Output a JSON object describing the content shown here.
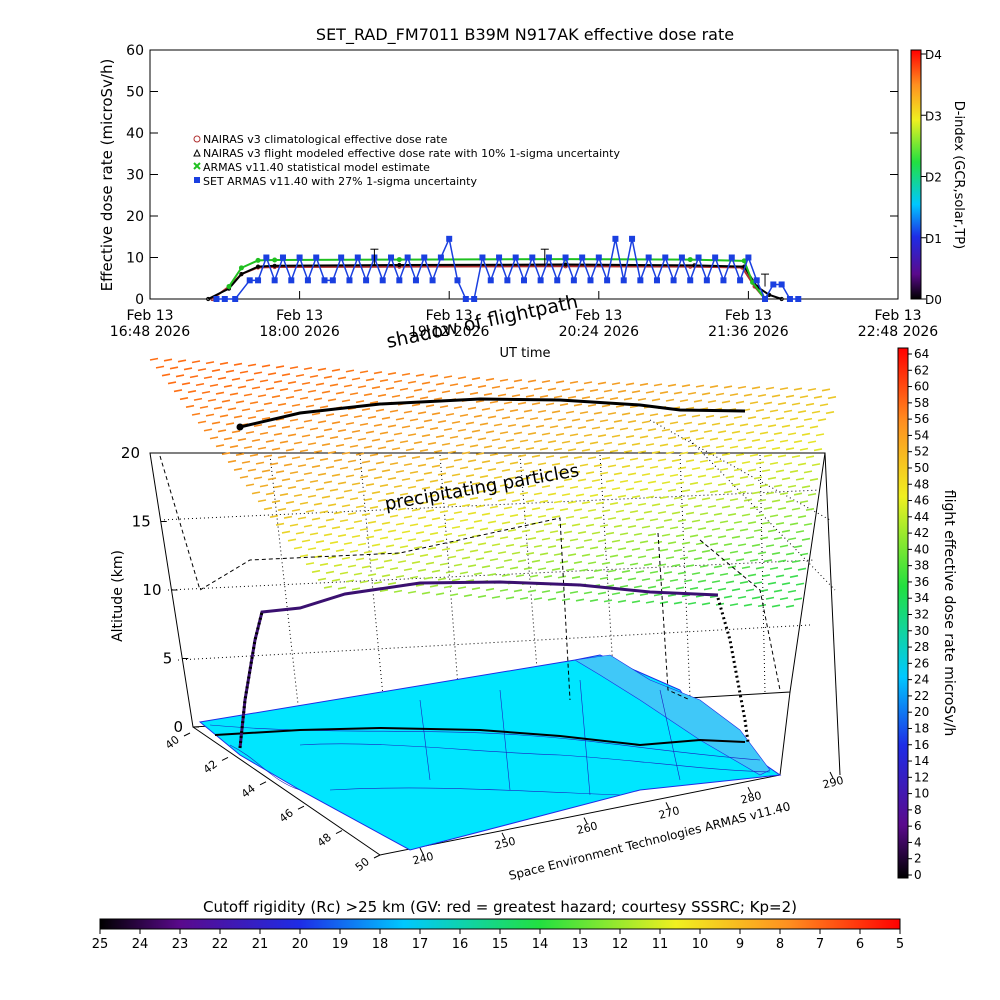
{
  "chart_data": [
    {
      "type": "line",
      "title": "SET_RAD_FM7011   B39M N917AK effective dose rate",
      "ylabel": "Effective dose rate (microSv/h)",
      "xlabel": "UT time",
      "ylim": [
        0,
        60
      ],
      "yticks": [
        0,
        10,
        20,
        30,
        40,
        50,
        60
      ],
      "xlim_minutes": [
        0,
        360
      ],
      "xticks": [
        {
          "m": 0,
          "l1": "Feb 13",
          "l2": "16:48 2026"
        },
        {
          "m": 72,
          "l1": "Feb 13",
          "l2": "18:00 2026"
        },
        {
          "m": 144,
          "l1": "Feb 13",
          "l2": "19:12 2026"
        },
        {
          "m": 216,
          "l1": "Feb 13",
          "l2": "20:24 2026"
        },
        {
          "m": 288,
          "l1": "Feb 13",
          "l2": "21:36 2026"
        },
        {
          "m": 360,
          "l1": "Feb 13",
          "l2": "22:48 2026"
        }
      ],
      "legend": [
        {
          "marker": "circle-open",
          "color": "#b03030",
          "label": "NAIRAS v3 climatological effective dose rate"
        },
        {
          "marker": "triangle-open",
          "color": "#000000",
          "label": "NAIRAS v3 flight modeled effective dose rate with 10% 1-sigma uncertainty"
        },
        {
          "marker": "x",
          "color": "#20c020",
          "label": "ARMAS v11.40 statistical model estimate"
        },
        {
          "marker": "square",
          "color": "#1a3fe0",
          "label": "SET ARMAS v11.40 with 27% 1-sigma uncertainty"
        }
      ],
      "series": [
        {
          "name": "NAIRAS v3 climatological effective dose rate",
          "color": "#b03030",
          "x": [
            30,
            38,
            44,
            52,
            60,
            120,
            200,
            260,
            285,
            291,
            296
          ],
          "y": [
            0,
            3,
            6,
            7.6,
            7.7,
            7.8,
            7.9,
            7.8,
            7.6,
            3,
            0
          ]
        },
        {
          "name": "NAIRAS v3 flight modeled effective dose rate",
          "color": "#000000",
          "x": [
            28,
            38,
            44,
            52,
            60,
            120,
            200,
            262,
            286,
            292,
            298,
            304
          ],
          "y": [
            0,
            2.5,
            6,
            7.8,
            8,
            8.2,
            8.3,
            8.1,
            7.8,
            3,
            1,
            0
          ]
        },
        {
          "name": "ARMAS v11.40 statistical model estimate",
          "color": "#20c020",
          "x": [
            38,
            44,
            52,
            60,
            120,
            200,
            260,
            286,
            290,
            296
          ],
          "y": [
            3,
            7.5,
            9.3,
            9.4,
            9.5,
            9.6,
            9.5,
            9.2,
            4,
            0
          ]
        },
        {
          "name": "SET ARMAS v11.40 with 27% 1-sigma uncertainty",
          "color": "#1a3fe0",
          "x": [
            32,
            36,
            41,
            48,
            52,
            56,
            60,
            64,
            68,
            72,
            76,
            80,
            84,
            88,
            92,
            96,
            100,
            104,
            108,
            112,
            116,
            120,
            124,
            128,
            132,
            136,
            140,
            144,
            148,
            152,
            156,
            160,
            164,
            168,
            172,
            176,
            180,
            184,
            188,
            192,
            196,
            200,
            204,
            208,
            212,
            216,
            220,
            224,
            228,
            232,
            236,
            240,
            244,
            248,
            252,
            256,
            260,
            264,
            268,
            272,
            276,
            280,
            284,
            288,
            292,
            296,
            300,
            304,
            308,
            312
          ],
          "y": [
            0,
            0,
            0,
            4.5,
            4.5,
            10,
            4.5,
            10,
            4.5,
            10,
            4.5,
            10,
            4.5,
            4.5,
            10,
            4.5,
            10,
            4.5,
            10,
            4.5,
            10,
            4.5,
            10,
            4.5,
            10,
            4.5,
            10,
            14.5,
            4.5,
            0,
            0,
            10,
            4.5,
            10,
            4.5,
            10,
            4.5,
            10,
            4.5,
            10,
            4.5,
            10,
            4.5,
            10,
            4.5,
            10,
            4.5,
            14.5,
            4.5,
            14.5,
            4.5,
            10,
            4.5,
            10,
            4.5,
            10,
            4.5,
            10,
            4.5,
            10,
            4.5,
            10,
            4.5,
            10,
            4.5,
            0,
            3.5,
            3.5,
            0,
            0
          ]
        }
      ],
      "d_index": {
        "label": "D-index (GCR,solar,TP)",
        "ticks": [
          {
            "label": "D0",
            "v": 0
          },
          {
            "label": "D1",
            "v": 1
          },
          {
            "label": "D2",
            "v": 2
          },
          {
            "label": "D3",
            "v": 3
          },
          {
            "label": "D4",
            "v": 4
          }
        ]
      }
    },
    {
      "type": "3d-flight-track",
      "annotations": {
        "shadow": "shadow of flightpath",
        "particles": "precipitating particles"
      },
      "zlabel": "Altitude (km)",
      "zticks": [
        0,
        5,
        10,
        15,
        20
      ],
      "lat_ticks": [
        40,
        42,
        44,
        46,
        48,
        50
      ],
      "lon_ticks": [
        240,
        250,
        260,
        270,
        280,
        290
      ],
      "credit": "Space Environment Technologies ARMAS v11.40",
      "flight_altitude_km": [
        0,
        3,
        6,
        8.5,
        9,
        10.2,
        10.8,
        10.7,
        10.2,
        9.9,
        6,
        3,
        0.5
      ],
      "colorbar": {
        "label": "flight effective dose rate microSv/h",
        "ticks": [
          0,
          2,
          4,
          6,
          8,
          10,
          12,
          14,
          16,
          18,
          20,
          22,
          24,
          26,
          28,
          30,
          32,
          34,
          36,
          38,
          40,
          42,
          44,
          46,
          48,
          50,
          52,
          54,
          56,
          58,
          60,
          62,
          64
        ]
      }
    },
    {
      "type": "colorbar",
      "title": "Cutoff rigidity (Rc) >25 km (GV: red = greatest hazard; courtesy SSSRC; Kp=2)",
      "ticks": [
        25,
        24,
        23,
        22,
        21,
        20,
        19,
        18,
        17,
        16,
        15,
        14,
        13,
        12,
        11,
        10,
        9,
        8,
        7,
        6,
        5
      ]
    }
  ]
}
